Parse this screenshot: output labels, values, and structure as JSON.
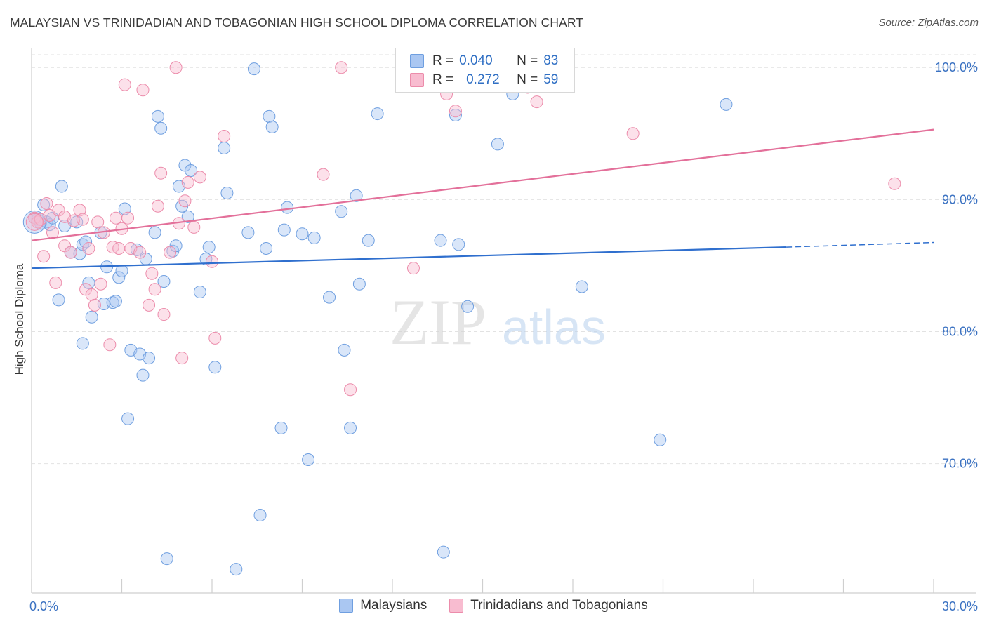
{
  "header": {
    "title": "MALAYSIAN VS TRINIDADIAN AND TOBAGONIAN HIGH SCHOOL DIPLOMA CORRELATION CHART",
    "source": "Source: ZipAtlas.com"
  },
  "watermark": {
    "zip": "ZIP",
    "atlas": "atlas"
  },
  "legend": {
    "r_label": "R =",
    "n_label": "N =",
    "rows": [
      {
        "r": "0.040",
        "n": "83",
        "fill": "#aac7f2",
        "stroke": "#6f9fe0"
      },
      {
        "r": "0.272",
        "n": "59",
        "fill": "#f8bcd0",
        "stroke": "#ec8cab"
      }
    ]
  },
  "bottom_legend": [
    {
      "label": "Malaysians",
      "fill": "#aac7f2",
      "stroke": "#6f9fe0"
    },
    {
      "label": "Trinidadians and Tobagonians",
      "fill": "#f8bcd0",
      "stroke": "#ec8cab"
    }
  ],
  "colors": {
    "blue_line": "#2f6fce",
    "pink_line": "#e3709a",
    "blue_point_fill": "rgba(170,199,242,0.45)",
    "blue_point_stroke": "#6f9fe0",
    "pink_point_fill": "rgba(248,188,208,0.45)",
    "pink_point_stroke": "#ec8cab",
    "tick_label": "#3b72c2",
    "grid": "#e2e2e2"
  },
  "chart_data": {
    "type": "scatter",
    "title": "MALAYSIAN VS TRINIDADIAN AND TOBAGONIAN HIGH SCHOOL DIPLOMA CORRELATION CHART",
    "xlabel": "",
    "ylabel": "High School Diploma",
    "xlim": [
      0,
      30
    ],
    "ylim": [
      60.2,
      101.5
    ],
    "x_tick_labels": [
      {
        "value": 0,
        "label": "0.0%"
      },
      {
        "value": 30,
        "label": "30.0%"
      }
    ],
    "y_tick_labels": [
      {
        "value": 70,
        "label": "70.0%"
      },
      {
        "value": 80,
        "label": "80.0%"
      },
      {
        "value": 90,
        "label": "90.0%"
      },
      {
        "value": 100,
        "label": "100.0%"
      }
    ],
    "grid": true,
    "series": [
      {
        "name": "Malaysians",
        "r": 0.04,
        "n": 83,
        "trend": {
          "x0": 0,
          "y0": 84.8,
          "x1": 25.1,
          "y1": 86.4,
          "dashed_to_x": 30,
          "dashed_to_y": 86.75
        },
        "points": [
          [
            0.1,
            88.6
          ],
          [
            0.2,
            88.5
          ],
          [
            0.3,
            88.2
          ],
          [
            0.4,
            89.6
          ],
          [
            0.5,
            88.3
          ],
          [
            0.6,
            88.1
          ],
          [
            0.7,
            88.6
          ],
          [
            0.9,
            82.4
          ],
          [
            1.0,
            91.0
          ],
          [
            1.1,
            88.0
          ],
          [
            1.3,
            86.0
          ],
          [
            1.5,
            88.3
          ],
          [
            1.6,
            85.9
          ],
          [
            1.7,
            86.6
          ],
          [
            1.8,
            86.8
          ],
          [
            1.7,
            79.1
          ],
          [
            1.9,
            83.7
          ],
          [
            2.0,
            81.1
          ],
          [
            2.3,
            87.5
          ],
          [
            2.4,
            82.1
          ],
          [
            2.5,
            84.9
          ],
          [
            2.7,
            82.2
          ],
          [
            2.8,
            82.3
          ],
          [
            2.9,
            84.1
          ],
          [
            3.0,
            84.6
          ],
          [
            3.1,
            89.3
          ],
          [
            3.2,
            73.4
          ],
          [
            3.3,
            78.6
          ],
          [
            3.5,
            86.2
          ],
          [
            3.6,
            78.3
          ],
          [
            3.7,
            76.7
          ],
          [
            3.8,
            85.5
          ],
          [
            3.9,
            78.0
          ],
          [
            4.1,
            87.5
          ],
          [
            4.2,
            96.3
          ],
          [
            4.3,
            95.4
          ],
          [
            4.4,
            83.8
          ],
          [
            4.5,
            62.8
          ],
          [
            4.7,
            86.1
          ],
          [
            4.8,
            86.5
          ],
          [
            4.9,
            91.0
          ],
          [
            5.0,
            89.5
          ],
          [
            5.1,
            92.6
          ],
          [
            5.2,
            88.7
          ],
          [
            5.3,
            92.2
          ],
          [
            5.6,
            83.0
          ],
          [
            5.8,
            85.5
          ],
          [
            5.9,
            86.4
          ],
          [
            6.1,
            77.3
          ],
          [
            6.4,
            93.9
          ],
          [
            6.5,
            90.5
          ],
          [
            6.8,
            62.0
          ],
          [
            7.2,
            87.5
          ],
          [
            7.4,
            99.9
          ],
          [
            7.6,
            66.1
          ],
          [
            7.8,
            86.3
          ],
          [
            7.9,
            96.3
          ],
          [
            8.0,
            95.5
          ],
          [
            8.3,
            72.7
          ],
          [
            8.5,
            89.4
          ],
          [
            8.4,
            87.7
          ],
          [
            9.0,
            87.4
          ],
          [
            9.2,
            70.3
          ],
          [
            9.4,
            87.1
          ],
          [
            9.9,
            82.6
          ],
          [
            10.3,
            89.1
          ],
          [
            10.4,
            78.6
          ],
          [
            10.6,
            72.7
          ],
          [
            10.8,
            90.3
          ],
          [
            10.9,
            83.6
          ],
          [
            11.2,
            86.9
          ],
          [
            11.5,
            96.5
          ],
          [
            13.6,
            86.9
          ],
          [
            13.7,
            63.3
          ],
          [
            14.2,
            86.6
          ],
          [
            14.1,
            96.4
          ],
          [
            14.5,
            81.9
          ],
          [
            15.5,
            94.2
          ],
          [
            16.0,
            98.0
          ],
          [
            16.2,
            98.6
          ],
          [
            18.3,
            83.4
          ],
          [
            20.9,
            71.8
          ],
          [
            23.1,
            97.2
          ]
        ]
      },
      {
        "name": "Trinidadians and Tobagonians",
        "r": 0.272,
        "n": 59,
        "trend": {
          "x0": 0,
          "y0": 86.9,
          "x1": 30,
          "y1": 95.3
        },
        "points": [
          [
            0.1,
            88.6
          ],
          [
            0.2,
            88.3
          ],
          [
            0.3,
            88.5
          ],
          [
            0.4,
            85.7
          ],
          [
            0.5,
            89.7
          ],
          [
            0.6,
            88.8
          ],
          [
            0.7,
            87.5
          ],
          [
            0.8,
            83.7
          ],
          [
            0.9,
            89.2
          ],
          [
            1.1,
            88.7
          ],
          [
            1.1,
            86.5
          ],
          [
            1.3,
            86.0
          ],
          [
            1.4,
            88.4
          ],
          [
            1.6,
            89.2
          ],
          [
            1.7,
            88.5
          ],
          [
            1.8,
            83.2
          ],
          [
            1.9,
            86.3
          ],
          [
            2.0,
            82.8
          ],
          [
            2.1,
            82.0
          ],
          [
            2.2,
            88.3
          ],
          [
            2.3,
            83.6
          ],
          [
            2.4,
            87.5
          ],
          [
            2.6,
            79.0
          ],
          [
            2.7,
            86.4
          ],
          [
            2.8,
            88.6
          ],
          [
            2.9,
            86.3
          ],
          [
            3.0,
            87.8
          ],
          [
            3.1,
            98.7
          ],
          [
            3.2,
            88.6
          ],
          [
            3.3,
            86.3
          ],
          [
            3.6,
            86.0
          ],
          [
            3.7,
            98.3
          ],
          [
            3.9,
            82.0
          ],
          [
            4.0,
            84.4
          ],
          [
            4.1,
            83.2
          ],
          [
            4.2,
            89.5
          ],
          [
            4.3,
            92.0
          ],
          [
            4.4,
            81.3
          ],
          [
            4.6,
            86.0
          ],
          [
            4.8,
            100.0
          ],
          [
            4.9,
            88.2
          ],
          [
            5.0,
            78.0
          ],
          [
            5.1,
            89.9
          ],
          [
            5.2,
            91.3
          ],
          [
            5.4,
            87.9
          ],
          [
            5.6,
            91.7
          ],
          [
            6.0,
            85.3
          ],
          [
            6.1,
            79.5
          ],
          [
            6.4,
            94.8
          ],
          [
            9.7,
            91.9
          ],
          [
            10.6,
            75.6
          ],
          [
            10.3,
            100.0
          ],
          [
            12.7,
            84.8
          ],
          [
            13.8,
            98.0
          ],
          [
            14.1,
            96.7
          ],
          [
            16.5,
            98.5
          ],
          [
            16.8,
            97.4
          ],
          [
            20.0,
            95.0
          ],
          [
            28.7,
            91.2
          ]
        ]
      }
    ]
  }
}
